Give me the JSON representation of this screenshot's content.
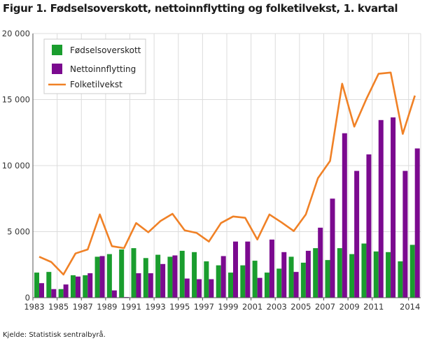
{
  "title": "Figur 1. Fødselsoverskott, nettoinnflytting og folketilvekst, 1. kvartal",
  "source": "Kjelde: Statistisk sentralbyrå.",
  "colors": {
    "fodsel": "#1a9d2e",
    "netto": "#7b0a8f",
    "folke": "#f08126",
    "grid": "#dcdcdc",
    "axis": "#555555"
  },
  "chart_data": {
    "type": "bar",
    "categories": [
      "1983",
      "1984",
      "1985",
      "1986",
      "1987",
      "1988",
      "1989",
      "1990",
      "1991",
      "1992",
      "1993",
      "1994",
      "1995",
      "1996",
      "1997",
      "1998",
      "1999",
      "2000",
      "2001",
      "2002",
      "2003",
      "2004",
      "2005",
      "2006",
      "2007",
      "2008",
      "2009",
      "2010",
      "2011",
      "2012",
      "2013",
      "2014"
    ],
    "x_tick_labels": [
      "1983",
      "1985",
      "1987",
      "1989",
      "1991",
      "1993",
      "1995",
      "1997",
      "1999",
      "2001",
      "2003",
      "2005",
      "2007",
      "2009",
      "2011",
      "2014"
    ],
    "ylim": [
      0,
      20000
    ],
    "y_ticks": [
      0,
      5000,
      10000,
      15000,
      20000
    ],
    "y_tick_labels": [
      "0",
      "5 000",
      "10 000",
      "15 000",
      "20 000"
    ],
    "grid": true,
    "legend_position": "top-left",
    "series": [
      {
        "name": "Fødselsoverskott",
        "kind": "bar",
        "values": [
          1900,
          1950,
          650,
          1700,
          1700,
          3100,
          3300,
          3650,
          3750,
          3000,
          3250,
          3100,
          3550,
          3450,
          2750,
          2450,
          1900,
          2450,
          2800,
          1900,
          2200,
          3100,
          2650,
          3750,
          2850,
          3750,
          3300,
          4100,
          3500,
          3450,
          2750,
          4000
        ]
      },
      {
        "name": "Nettoinnflytting",
        "kind": "bar",
        "values": [
          1100,
          650,
          1000,
          1600,
          1850,
          3150,
          550,
          50,
          1850,
          1850,
          2550,
          3200,
          1450,
          1400,
          1400,
          3150,
          4250,
          4250,
          1500,
          4400,
          3450,
          1950,
          3550,
          5300,
          7500,
          12450,
          9600,
          10850,
          13450,
          13650,
          9600,
          11300
        ]
      },
      {
        "name": "Folketilvekst",
        "kind": "line",
        "values": [
          3100,
          2700,
          1750,
          3350,
          3650,
          6300,
          3900,
          3750,
          5650,
          4950,
          5800,
          6350,
          5100,
          4900,
          4250,
          5650,
          6150,
          6050,
          4400,
          6300,
          5700,
          5050,
          6300,
          9050,
          10350,
          16200,
          12950,
          15050,
          16950,
          17050,
          12400,
          15300
        ]
      }
    ]
  }
}
